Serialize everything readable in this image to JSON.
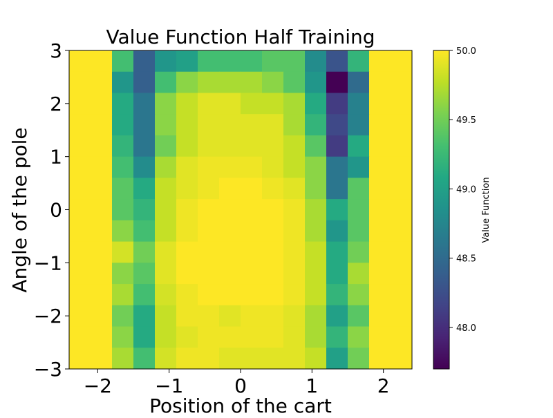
{
  "chart_data": {
    "type": "heatmap",
    "title": "Value Function Half Training",
    "xlabel": "Position of the cart",
    "ylabel": "Angle of the pole",
    "xlim": [
      -2.4,
      2.4
    ],
    "ylim": [
      -3,
      3
    ],
    "x_ticks": [
      -2,
      -1,
      0,
      1,
      2
    ],
    "x_tick_labels": [
      "−2",
      "−1",
      "0",
      "1",
      "2"
    ],
    "y_ticks": [
      -3,
      -2,
      -1,
      0,
      1,
      2,
      3
    ],
    "y_tick_labels": [
      "−3",
      "−2",
      "−1",
      "0",
      "1",
      "2",
      "3"
    ],
    "colormap": "viridis",
    "color_range": [
      47.7,
      50.0
    ],
    "colorbar": {
      "label": "Value Function",
      "ticks": [
        48.0,
        48.5,
        49.0,
        49.5,
        50.0
      ],
      "tick_labels": [
        "48.0",
        "48.5",
        "49.0",
        "49.5",
        "50.0"
      ]
    },
    "grid": false,
    "x_bin_edges": [
      -2.4,
      -1.8,
      -1.5,
      -1.2,
      -0.9,
      -0.6,
      -0.3,
      0.0,
      0.3,
      0.6,
      0.9,
      1.2,
      1.5,
      1.8,
      2.4
    ],
    "y_bin_edges": [
      3.0,
      2.6,
      2.2,
      1.8,
      1.4,
      1.0,
      0.6,
      0.2,
      -0.2,
      -0.6,
      -1.0,
      -1.4,
      -1.8,
      -2.2,
      -2.6,
      -3.0
    ],
    "values": [
      [
        50.0,
        49.3,
        48.4,
        48.9,
        49.0,
        49.3,
        49.3,
        49.3,
        49.4,
        49.4,
        48.8,
        48.3,
        49.2,
        50.0
      ],
      [
        50.0,
        48.9,
        48.4,
        49.3,
        49.6,
        49.7,
        49.7,
        49.7,
        49.6,
        49.4,
        48.9,
        47.7,
        48.5,
        50.0
      ],
      [
        50.0,
        49.1,
        48.6,
        49.6,
        49.8,
        49.9,
        49.9,
        49.8,
        49.8,
        49.7,
        49.1,
        48.1,
        48.7,
        50.0
      ],
      [
        50.0,
        49.1,
        48.6,
        49.6,
        49.8,
        49.9,
        49.9,
        49.9,
        49.9,
        49.7,
        49.2,
        48.2,
        48.7,
        50.0
      ],
      [
        50.0,
        49.2,
        48.6,
        49.5,
        49.8,
        49.9,
        49.9,
        49.9,
        49.9,
        49.8,
        49.4,
        48.1,
        49.1,
        50.0
      ],
      [
        50.0,
        49.3,
        48.8,
        49.7,
        49.9,
        49.95,
        49.95,
        49.95,
        49.9,
        49.8,
        49.6,
        48.6,
        48.9,
        50.0
      ],
      [
        50.0,
        49.4,
        49.1,
        49.8,
        49.9,
        49.95,
        50.0,
        50.0,
        49.95,
        49.9,
        49.6,
        48.6,
        49.4,
        50.0
      ],
      [
        50.0,
        49.4,
        49.2,
        49.8,
        49.95,
        50.0,
        50.0,
        50.0,
        50.0,
        49.95,
        49.7,
        49.1,
        49.4,
        50.0
      ],
      [
        50.0,
        49.6,
        49.3,
        49.8,
        49.95,
        50.0,
        50.0,
        50.0,
        50.0,
        49.95,
        49.7,
        48.9,
        49.4,
        50.0
      ],
      [
        50.0,
        49.85,
        49.5,
        49.9,
        50.0,
        50.0,
        50.0,
        50.0,
        50.0,
        49.95,
        49.8,
        49.1,
        49.5,
        50.0
      ],
      [
        50.0,
        49.6,
        49.4,
        49.9,
        50.0,
        50.0,
        50.0,
        50.0,
        50.0,
        49.95,
        49.8,
        49.1,
        49.7,
        50.0
      ],
      [
        50.0,
        49.7,
        49.3,
        49.85,
        49.95,
        50.0,
        50.0,
        50.0,
        50.0,
        49.95,
        49.8,
        49.2,
        49.6,
        50.0
      ],
      [
        50.0,
        49.5,
        49.1,
        49.8,
        49.95,
        49.95,
        49.9,
        49.95,
        49.95,
        49.9,
        49.7,
        49.0,
        49.4,
        50.0
      ],
      [
        50.0,
        49.6,
        49.1,
        49.8,
        49.9,
        49.95,
        49.95,
        49.95,
        49.95,
        49.9,
        49.7,
        49.2,
        49.6,
        50.0
      ],
      [
        50.0,
        49.7,
        49.3,
        49.85,
        49.95,
        49.95,
        49.9,
        49.9,
        49.9,
        49.9,
        49.8,
        49.0,
        49.5,
        50.0
      ]
    ]
  }
}
